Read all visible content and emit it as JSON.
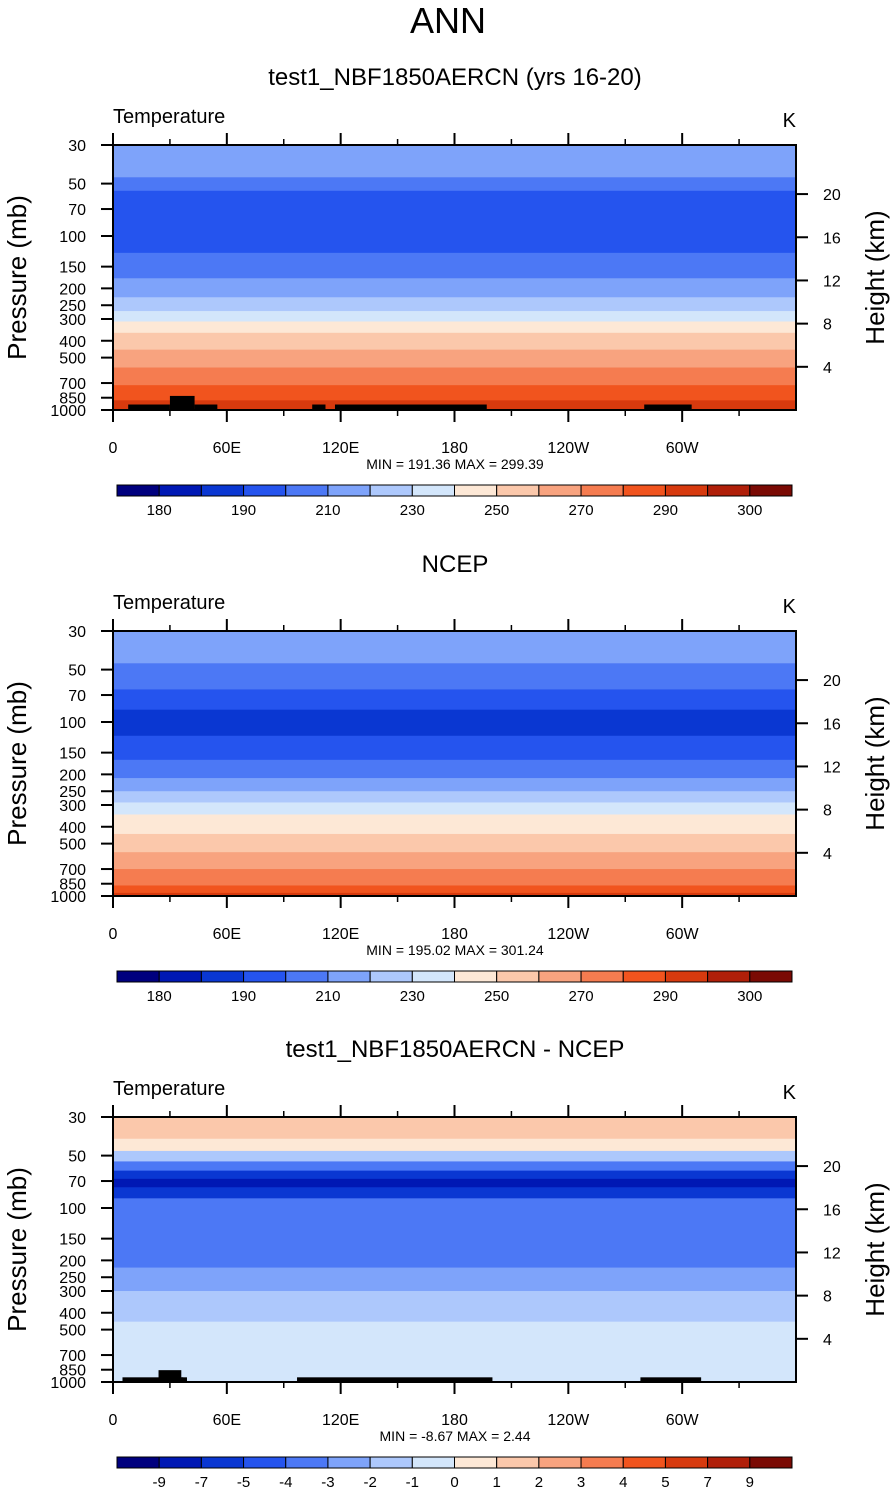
{
  "page_title": "ANN",
  "colors": {
    "temp_levels": [
      "#00007e",
      "#0018b4",
      "#0a37d2",
      "#2554ee",
      "#4c78f5",
      "#7ea3fa",
      "#adc8fc",
      "#d3e6fb",
      "#fde8d6",
      "#fbc8ab",
      "#f8a37f",
      "#f57c50",
      "#f1541e",
      "#d73a0e",
      "#b01f09",
      "#7a0a04"
    ],
    "diff_levels": [
      "#00007e",
      "#0018b4",
      "#0a37d2",
      "#2554ee",
      "#4c78f5",
      "#7ea3fa",
      "#adc8fc",
      "#d3e6fb",
      "#fde8d6",
      "#fbc8ab",
      "#f8a37f",
      "#f57c50",
      "#f1541e",
      "#d73a0e",
      "#b01f09",
      "#7a0a04"
    ],
    "terrain": "#000000"
  },
  "chart_data": [
    {
      "type": "heatmap",
      "title": "test1_NBF1850AERCN (yrs 16-20)",
      "subtitle_left": "Temperature",
      "subtitle_right": "K",
      "ylabel": "Pressure (mb)",
      "ylabel_right": "Height (km)",
      "x_ticks": [
        "0",
        "60E",
        "120E",
        "180",
        "120W",
        "60W"
      ],
      "x_tick_values": [
        0,
        60,
        120,
        180,
        240,
        300
      ],
      "xlim": [
        0,
        360
      ],
      "y_ticks": [
        "30",
        "50",
        "70",
        "100",
        "150",
        "200",
        "250",
        "300",
        "400",
        "500",
        "700",
        "850",
        "1000"
      ],
      "y_tick_values": [
        30,
        50,
        70,
        100,
        150,
        200,
        250,
        300,
        400,
        500,
        700,
        850,
        1000
      ],
      "ylim": [
        30,
        1000
      ],
      "height_ticks": [
        "20",
        "16",
        "12",
        "8",
        "4"
      ],
      "height_tick_values": [
        20,
        16,
        12,
        8,
        4
      ],
      "stats": "MIN = 191.36  MAX = 299.39",
      "colorbar_labels": [
        "180",
        "190",
        "210",
        "230",
        "250",
        "270",
        "290",
        "300"
      ],
      "bands": [
        {
          "p": [
            30,
            46
          ],
          "level": 5
        },
        {
          "p": [
            46,
            55
          ],
          "level": 4
        },
        {
          "p": [
            55,
            125
          ],
          "level": 3
        },
        {
          "p": [
            125,
            175
          ],
          "level": 4
        },
        {
          "p": [
            175,
            225
          ],
          "level": 5
        },
        {
          "p": [
            225,
            270
          ],
          "level": 6
        },
        {
          "p": [
            270,
            310
          ],
          "level": 7
        },
        {
          "p": [
            310,
            360
          ],
          "level": 8
        },
        {
          "p": [
            360,
            450
          ],
          "level": 9
        },
        {
          "p": [
            450,
            570
          ],
          "level": 10
        },
        {
          "p": [
            570,
            720
          ],
          "level": 11
        },
        {
          "p": [
            720,
            880
          ],
          "level": 12
        },
        {
          "p": [
            880,
            1000
          ],
          "level": 13
        }
      ],
      "terrain": [
        [
          8,
          30,
          930
        ],
        [
          30,
          43,
          830
        ],
        [
          43,
          55,
          930
        ],
        [
          105,
          112,
          930
        ],
        [
          117,
          197,
          930
        ],
        [
          280,
          305,
          930
        ]
      ]
    },
    {
      "type": "heatmap",
      "title": "NCEP",
      "subtitle_left": "Temperature",
      "subtitle_right": "K",
      "ylabel": "Pressure (mb)",
      "ylabel_right": "Height (km)",
      "x_ticks": [
        "0",
        "60E",
        "120E",
        "180",
        "120W",
        "60W"
      ],
      "x_tick_values": [
        0,
        60,
        120,
        180,
        240,
        300
      ],
      "xlim": [
        0,
        360
      ],
      "y_ticks": [
        "30",
        "50",
        "70",
        "100",
        "150",
        "200",
        "250",
        "300",
        "400",
        "500",
        "700",
        "850",
        "1000"
      ],
      "y_tick_values": [
        30,
        50,
        70,
        100,
        150,
        200,
        250,
        300,
        400,
        500,
        700,
        850,
        1000
      ],
      "ylim": [
        30,
        1000
      ],
      "height_ticks": [
        "20",
        "16",
        "12",
        "8",
        "4"
      ],
      "height_tick_values": [
        20,
        16,
        12,
        8,
        4
      ],
      "stats": "MIN = 195.02  MAX = 301.24",
      "colorbar_labels": [
        "180",
        "190",
        "210",
        "230",
        "250",
        "270",
        "290",
        "300"
      ],
      "bands": [
        {
          "p": [
            30,
            46
          ],
          "level": 5
        },
        {
          "p": [
            46,
            65
          ],
          "level": 4
        },
        {
          "p": [
            65,
            85
          ],
          "level": 3
        },
        {
          "p": [
            85,
            120
          ],
          "level": 2
        },
        {
          "p": [
            120,
            165
          ],
          "level": 3
        },
        {
          "p": [
            165,
            210
          ],
          "level": 4
        },
        {
          "p": [
            210,
            250
          ],
          "level": 5
        },
        {
          "p": [
            250,
            290
          ],
          "level": 6
        },
        {
          "p": [
            290,
            340
          ],
          "level": 7
        },
        {
          "p": [
            340,
            440
          ],
          "level": 8
        },
        {
          "p": [
            440,
            560
          ],
          "level": 9
        },
        {
          "p": [
            560,
            700
          ],
          "level": 10
        },
        {
          "p": [
            700,
            870
          ],
          "level": 11
        },
        {
          "p": [
            870,
            960
          ],
          "level": 12
        },
        {
          "p": [
            960,
            1000
          ],
          "level": 13
        }
      ],
      "terrain": []
    },
    {
      "type": "heatmap",
      "title": "test1_NBF1850AERCN - NCEP",
      "subtitle_left": "Temperature",
      "subtitle_right": "K",
      "ylabel": "Pressure (mb)",
      "ylabel_right": "Height (km)",
      "x_ticks": [
        "0",
        "60E",
        "120E",
        "180",
        "120W",
        "60W"
      ],
      "x_tick_values": [
        0,
        60,
        120,
        180,
        240,
        300
      ],
      "xlim": [
        0,
        360
      ],
      "y_ticks": [
        "30",
        "50",
        "70",
        "100",
        "150",
        "200",
        "250",
        "300",
        "400",
        "500",
        "700",
        "850",
        "1000"
      ],
      "y_tick_values": [
        30,
        50,
        70,
        100,
        150,
        200,
        250,
        300,
        400,
        500,
        700,
        850,
        1000
      ],
      "ylim": [
        30,
        1000
      ],
      "height_ticks": [
        "20",
        "16",
        "12",
        "8",
        "4"
      ],
      "height_tick_values": [
        20,
        16,
        12,
        8,
        4
      ],
      "stats": "MIN =  -8.67  MAX =   2.44",
      "colorbar_labels": [
        "-9",
        "-7",
        "-5",
        "-4",
        "-3",
        "-2",
        "-1",
        "0",
        "1",
        "2",
        "3",
        "4",
        "5",
        "7",
        "9"
      ],
      "bands": [
        {
          "p": [
            30,
            40
          ],
          "level": 9
        },
        {
          "p": [
            40,
            47
          ],
          "level": 8
        },
        {
          "p": [
            47,
            54
          ],
          "level": 6
        },
        {
          "p": [
            54,
            61
          ],
          "level": 4
        },
        {
          "p": [
            61,
            68
          ],
          "level": 2
        },
        {
          "p": [
            68,
            76
          ],
          "level": 1
        },
        {
          "p": [
            76,
            88
          ],
          "level": 2
        },
        {
          "p": [
            88,
            220
          ],
          "level": 4
        },
        {
          "p": [
            220,
            300
          ],
          "level": 5
        },
        {
          "p": [
            300,
            450
          ],
          "level": 6
        },
        {
          "p": [
            450,
            720
          ],
          "level": 7
        },
        {
          "p": [
            720,
            1000
          ],
          "level": 7
        }
      ],
      "terrain": [
        [
          5,
          37,
          940
        ],
        [
          24,
          36,
          855
        ],
        [
          36,
          39,
          940
        ],
        [
          97,
          200,
          940
        ],
        [
          278,
          310,
          940
        ]
      ]
    }
  ]
}
